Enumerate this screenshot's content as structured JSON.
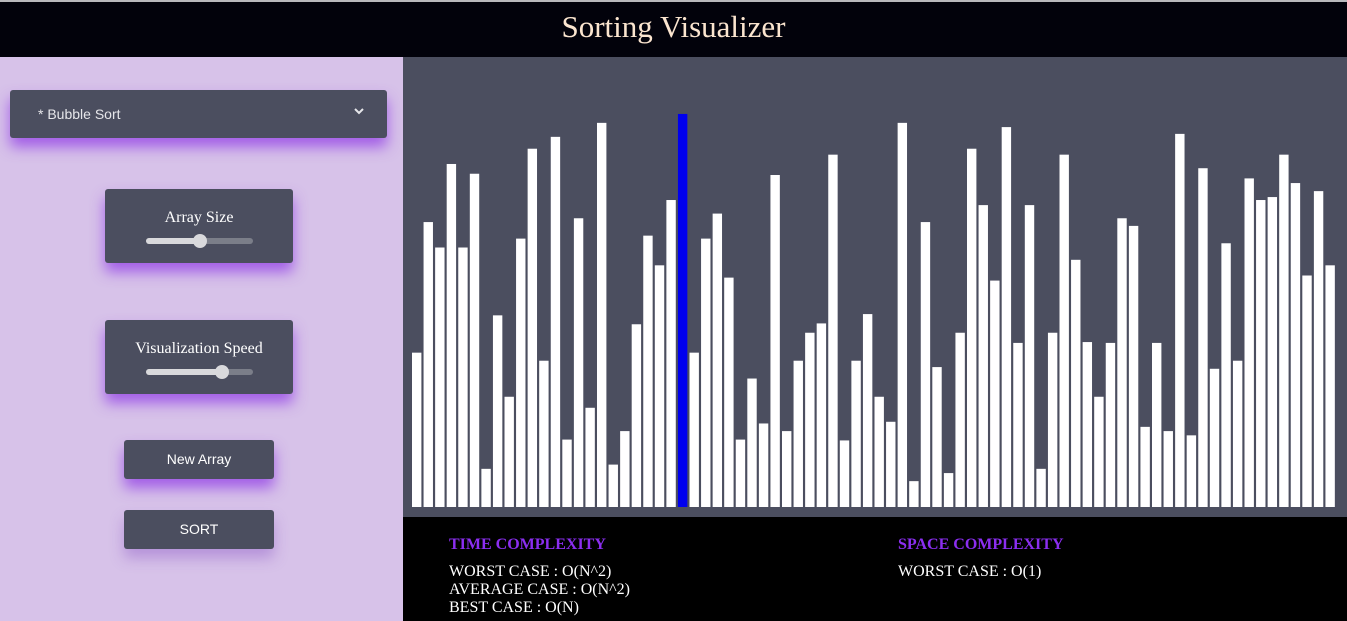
{
  "header": {
    "title": "Sorting Visualizer"
  },
  "controls": {
    "algorithm": {
      "selected": "* Bubble Sort",
      "icon": "chevron-down-icon"
    },
    "array_size": {
      "label": "Array Size",
      "value_fraction": 0.5
    },
    "speed": {
      "label": "Visualization Speed",
      "value_fraction": 0.71
    },
    "new_array_label": "New Array",
    "sort_label": "SORT"
  },
  "complexity": {
    "time": {
      "title": "TIME COMPLEXITY",
      "worst": "WORST CASE : O(N^2)",
      "average": "AVERAGE CASE : O(N^2)",
      "best": "BEST CASE : O(N)"
    },
    "space": {
      "title": "SPACE COMPLEXITY",
      "worst": "WORST CASE : O(1)"
    }
  },
  "colors": {
    "bar": "#ffffff",
    "active_bar": "#0000ee",
    "panel": "#4b4e5f",
    "accent": "#8b2ef0"
  },
  "chart_data": {
    "type": "bar",
    "active_index": 23,
    "values": [
      36.4,
      67.2,
      61.2,
      80.9,
      61.2,
      78.6,
      9.0,
      45.2,
      26.0,
      63.3,
      84.5,
      34.5,
      87.3,
      15.9,
      68.1,
      23.4,
      90.6,
      10.0,
      17.9,
      43.1,
      64.0,
      57.0,
      72.4,
      92.7,
      36.4,
      63.3,
      69.2,
      54.1,
      15.9,
      30.3,
      19.7,
      78.3,
      17.9,
      34.5,
      41.1,
      43.3,
      83.1,
      15.7,
      34.5,
      45.5,
      26.0,
      20.1,
      90.6,
      6.1,
      67.2,
      33.0,
      8.0,
      41.1,
      84.5,
      71.2,
      53.4,
      89.6,
      38.7,
      71.2,
      9.0,
      41.1,
      83.1,
      58.3,
      38.9,
      26.0,
      38.7,
      68.1,
      66.3,
      18.9,
      38.7,
      17.9,
      88.0,
      16.9,
      79.9,
      32.6,
      62.2,
      34.5,
      77.5,
      72.4,
      73.1,
      83.1,
      76.4,
      54.6,
      74.5,
      57.0
    ]
  }
}
